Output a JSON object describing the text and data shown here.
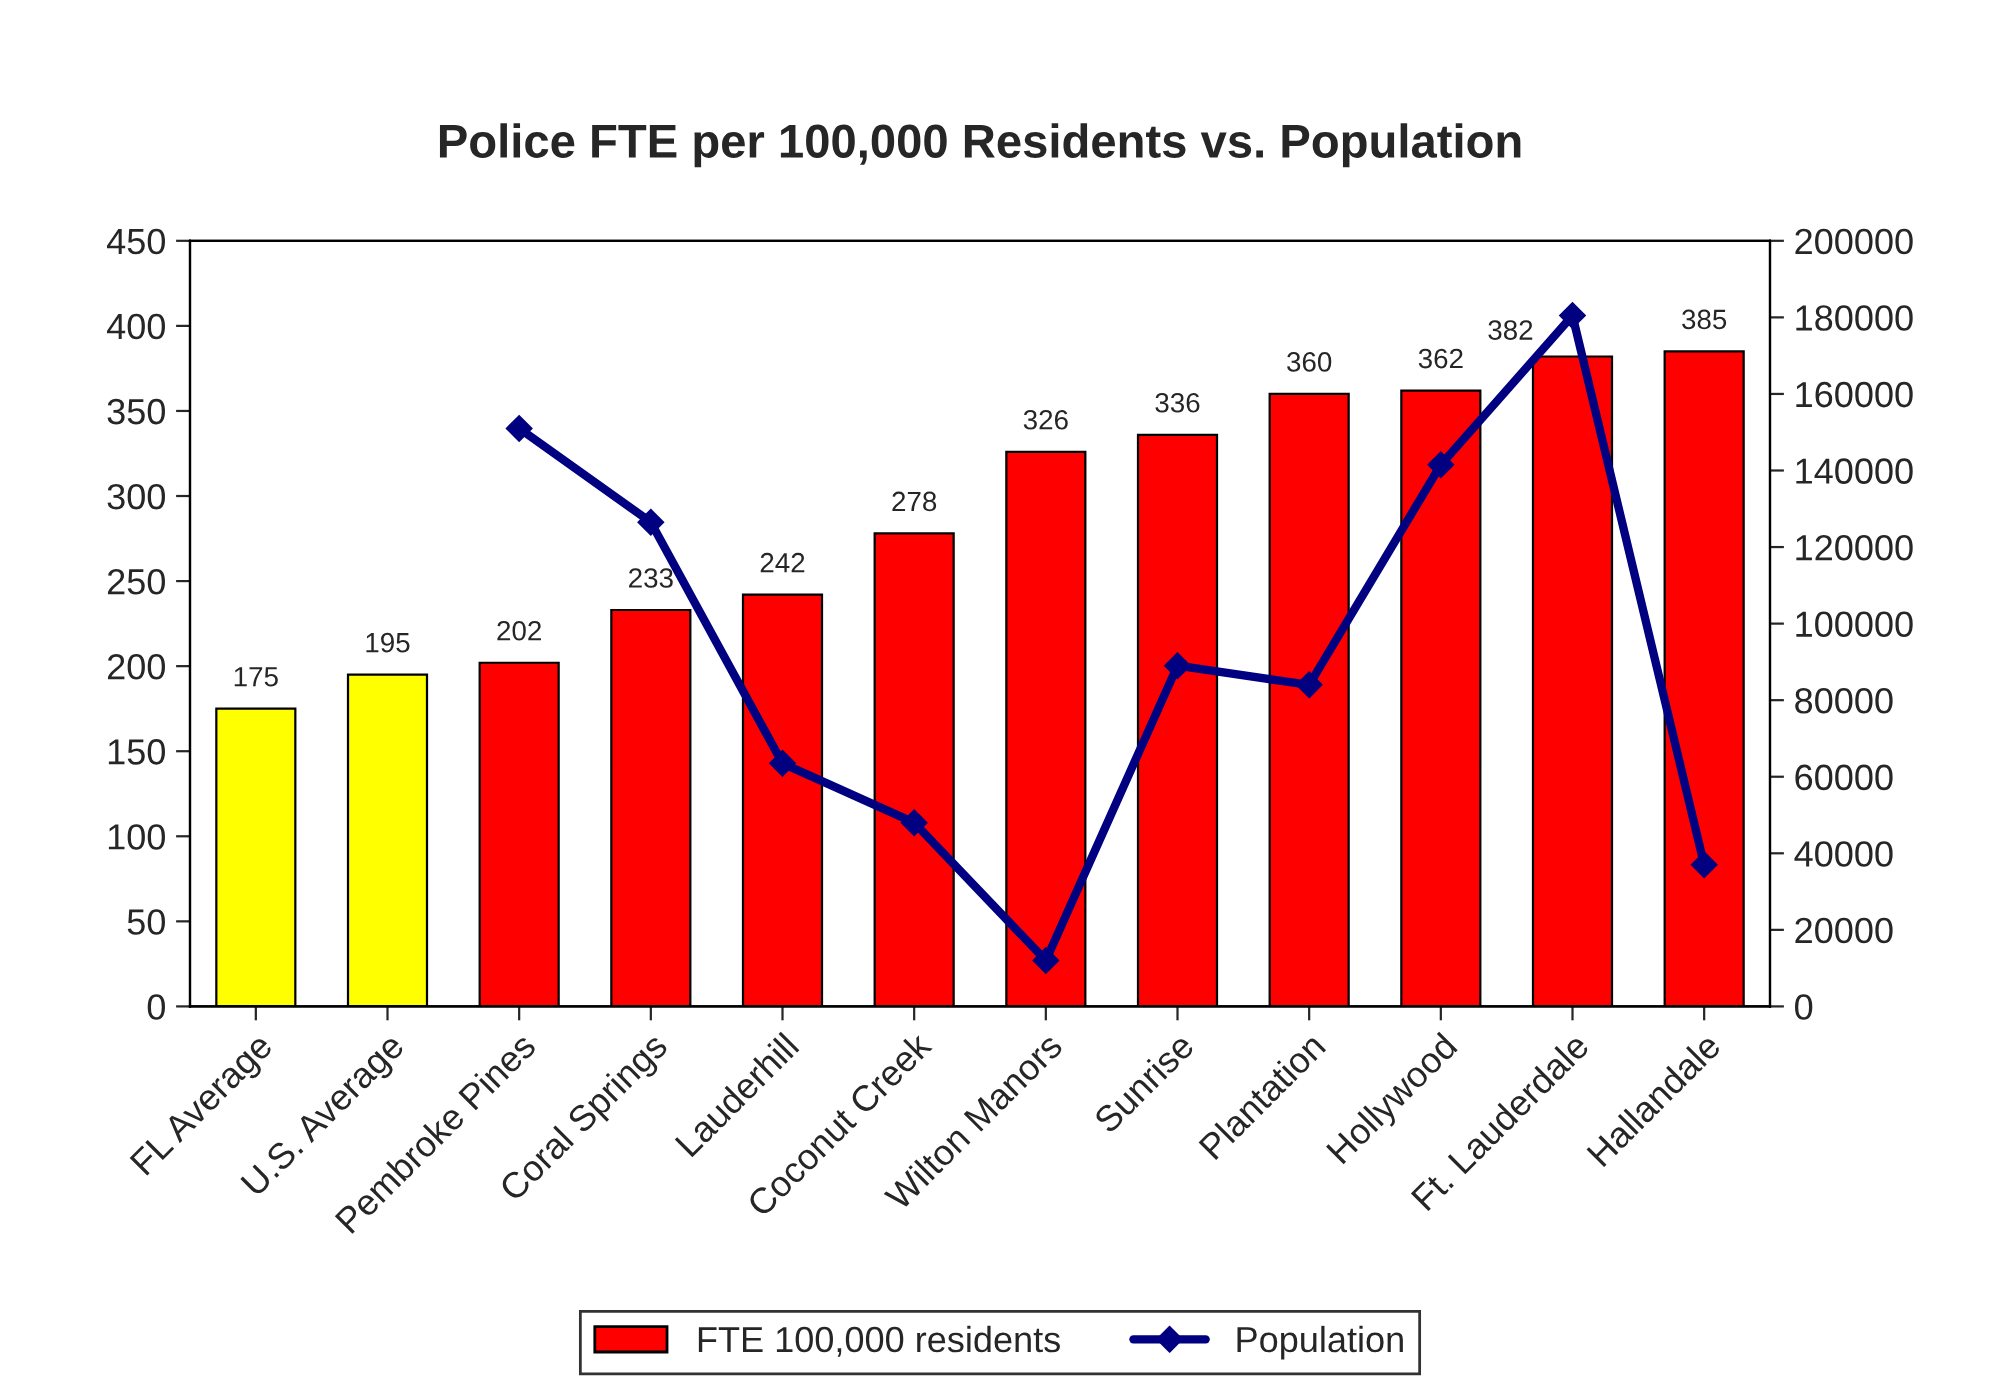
{
  "chart_data": {
    "type": "bar",
    "title": "Police FTE per 100,000 Residents vs. Population",
    "categories": [
      "FL Average",
      "U.S. Average",
      "Pembroke Pines",
      "Coral Springs",
      "Lauderhill",
      "Coconut Creek",
      "Wilton Manors",
      "Sunrise",
      "Plantation",
      "Hollywood",
      "Ft. Lauderdale",
      "Hallandale"
    ],
    "series": [
      {
        "name": "FTE 100,000 residents",
        "color": "#ff0000",
        "colors": [
          "#ffff00",
          "#ffff00",
          "#ff0000",
          "#ff0000",
          "#ff0000",
          "#ff0000",
          "#ff0000",
          "#ff0000",
          "#ff0000",
          "#ff0000",
          "#ff0000",
          "#ff0000"
        ],
        "values": [
          175,
          195,
          202,
          233,
          242,
          278,
          326,
          336,
          360,
          362,
          382,
          385
        ],
        "value_labels": [
          "175",
          "195",
          "202",
          "233",
          "242",
          "278",
          "326",
          "336",
          "360",
          "362",
          "382",
          "385"
        ]
      },
      {
        "name": "Population",
        "type": "line",
        "axis": "y2",
        "color": "#000080",
        "marker": "diamond",
        "values": [
          null,
          null,
          151000,
          126500,
          63500,
          48000,
          12000,
          89000,
          84000,
          141500,
          180500,
          37000
        ]
      }
    ],
    "ylim": [
      0,
      450
    ],
    "yticks": [
      0,
      50,
      100,
      150,
      200,
      250,
      300,
      350,
      400,
      450
    ],
    "y2lim": [
      0,
      200000
    ],
    "y2ticks": [
      0,
      20000,
      40000,
      60000,
      80000,
      100000,
      120000,
      140000,
      160000,
      180000,
      200000
    ],
    "grid": false,
    "legend": "bottom"
  }
}
